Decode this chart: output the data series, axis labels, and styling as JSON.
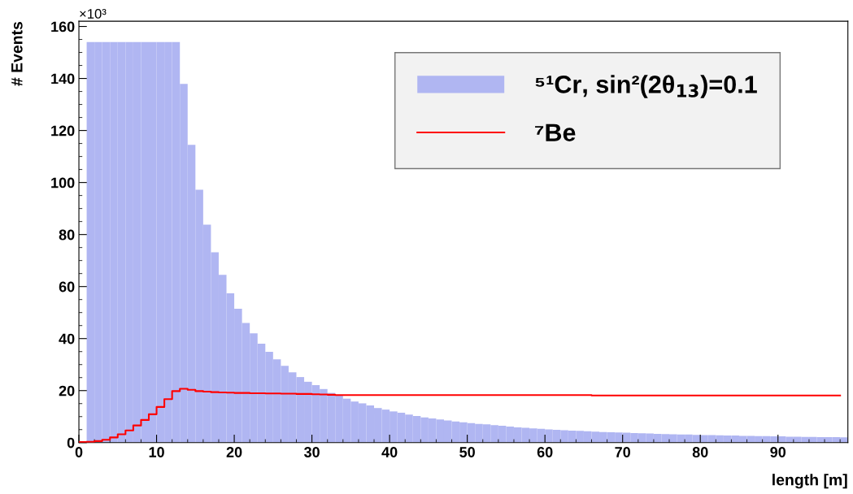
{
  "chart_data": {
    "type": "histogram",
    "xlabel": "length [m]",
    "ylabel": "# Events",
    "annotations": [
      "×10³"
    ],
    "bins": [
      0,
      1,
      2,
      3,
      4,
      5,
      6,
      7,
      8,
      9,
      10,
      11,
      12,
      13,
      14,
      15,
      16,
      17,
      18,
      19,
      20,
      21,
      22,
      23,
      24,
      25,
      26,
      27,
      28,
      29,
      30,
      31,
      32,
      33,
      34,
      35,
      36,
      37,
      38,
      39,
      40,
      41,
      42,
      43,
      44,
      45,
      46,
      47,
      48,
      49,
      50,
      51,
      52,
      53,
      54,
      55,
      56,
      57,
      58,
      59,
      60,
      61,
      62,
      63,
      64,
      65,
      66,
      67,
      68,
      69,
      70,
      71,
      72,
      73,
      74,
      75,
      76,
      77,
      78,
      79,
      80,
      81,
      82,
      83,
      84,
      85,
      86,
      87,
      88,
      89,
      90,
      91,
      92,
      93,
      94,
      95,
      96,
      97,
      98,
      99
    ],
    "series": [
      {
        "name": "⁵¹Cr, sin²(2θ$_{13}$)=0.1",
        "color": "#b0b6f2",
        "values": [
          0,
          154,
          154,
          154,
          154,
          154,
          154,
          154,
          154,
          154,
          154,
          154,
          154,
          137.9,
          114.5,
          97.2,
          83.8,
          73.2,
          64.5,
          57.4,
          51.5,
          46.0,
          42.0,
          38.0,
          34.9,
          32.0,
          29.5,
          27.0,
          25.2,
          23.4,
          22.1,
          20.6,
          19.1,
          18.2,
          16.9,
          15.8,
          15.1,
          14.3,
          13.3,
          12.7,
          12.0,
          11.5,
          10.8,
          10.2,
          9.7,
          9.3,
          8.9,
          8.5,
          8.1,
          7.8,
          7.5,
          7.2,
          7.0,
          6.7,
          6.5,
          6.2,
          5.9,
          5.7,
          5.5,
          5.3,
          5.1,
          4.9,
          4.8,
          4.6,
          4.5,
          4.4,
          4.2,
          4.1,
          4.0,
          3.9,
          3.8,
          3.7,
          3.6,
          3.5,
          3.4,
          3.3,
          3.2,
          3.1,
          3.1,
          3.0,
          2.9,
          2.9,
          2.8,
          2.7,
          2.7,
          2.6,
          2.6,
          2.5,
          2.5,
          2.4,
          2.4,
          2.3,
          2.3,
          2.2,
          2.2,
          2.1,
          2.1,
          2.1,
          2.0
        ]
      },
      {
        "name": "⁷Be",
        "color": "#ff0000",
        "type": "step",
        "x": [
          0,
          1,
          2,
          3,
          4,
          5,
          6,
          7,
          8,
          9,
          10,
          11,
          12,
          13,
          14,
          15,
          16,
          17,
          18,
          19,
          20,
          21,
          22,
          23,
          24,
          25,
          26,
          27,
          28,
          29,
          30,
          31,
          32,
          33,
          34,
          35,
          36,
          37,
          38,
          39,
          40,
          41,
          42,
          43,
          44,
          45,
          46,
          47,
          48,
          49,
          50,
          51,
          52,
          53,
          54,
          55,
          56,
          57,
          58,
          59,
          60,
          61,
          62,
          63,
          64,
          65,
          66,
          67,
          68,
          69,
          70,
          71,
          72,
          73,
          74,
          75,
          76,
          77,
          78,
          79,
          80,
          81,
          82,
          83,
          84,
          85,
          86,
          87,
          88,
          89,
          90,
          91,
          92,
          93,
          94,
          95,
          96,
          97,
          98
        ],
        "values": [
          0.2,
          0.3,
          0.6,
          1.1,
          2.0,
          3.2,
          4.7,
          6.6,
          8.7,
          10.9,
          13.7,
          16.7,
          19.8,
          20.7,
          20.3,
          19.8,
          19.6,
          19.4,
          19.3,
          19.2,
          19.1,
          19.1,
          19.0,
          19.0,
          18.9,
          18.9,
          18.8,
          18.8,
          18.7,
          18.7,
          18.6,
          18.5,
          18.4,
          18.3,
          18.3,
          18.3,
          18.3,
          18.3,
          18.3,
          18.3,
          18.3,
          18.3,
          18.3,
          18.3,
          18.3,
          18.3,
          18.3,
          18.3,
          18.3,
          18.3,
          18.3,
          18.3,
          18.3,
          18.3,
          18.3,
          18.3,
          18.3,
          18.3,
          18.3,
          18.3,
          18.3,
          18.3,
          18.3,
          18.3,
          18.3,
          18.3,
          18.1,
          18.1,
          18.1,
          18.1,
          18.1,
          18.1,
          18.1,
          18.1,
          18.1,
          18.1,
          18.1,
          18.1,
          18.1,
          18.1,
          18.1,
          18.1,
          18.1,
          18.1,
          18.1,
          18.1,
          18.1,
          18.1,
          18.1,
          18.1,
          18.1,
          18.1,
          18.1,
          18.1,
          18.1,
          18.1,
          18.1,
          18.1,
          18.1
        ]
      }
    ],
    "xlim": [
      0,
      99
    ],
    "xticks": [
      0,
      10,
      20,
      30,
      40,
      50,
      60,
      70,
      80,
      90
    ],
    "ylim": [
      0,
      162
    ],
    "yticks": [
      0,
      20,
      40,
      60,
      80,
      100,
      120,
      140,
      160
    ],
    "grid": false,
    "legend": "top right"
  }
}
